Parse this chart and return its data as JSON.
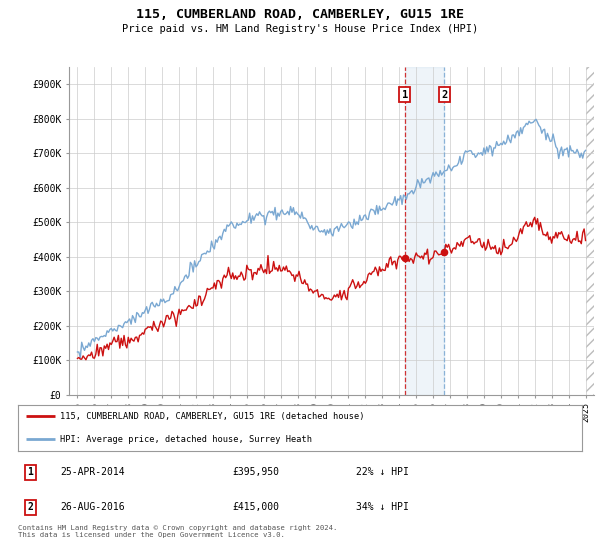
{
  "title": "115, CUMBERLAND ROAD, CAMBERLEY, GU15 1RE",
  "subtitle": "Price paid vs. HM Land Registry's House Price Index (HPI)",
  "ylim": [
    0,
    950000
  ],
  "yticks": [
    0,
    100000,
    200000,
    300000,
    400000,
    500000,
    600000,
    700000,
    800000,
    900000
  ],
  "hpi_color": "#7aa8d2",
  "price_color": "#cc1111",
  "annotation_color_red": "#cc1111",
  "annotation_color_blue": "#7aa8d2",
  "background_color": "#ffffff",
  "grid_color": "#cccccc",
  "transaction1": {
    "date": "25-APR-2014",
    "price": 395950,
    "label": "1",
    "x_year": 2014.32
  },
  "transaction2": {
    "date": "26-AUG-2016",
    "price": 415000,
    "label": "2",
    "x_year": 2016.66
  },
  "legend1": "115, CUMBERLAND ROAD, CAMBERLEY, GU15 1RE (detached house)",
  "legend2": "HPI: Average price, detached house, Surrey Heath",
  "footnote": "Contains HM Land Registry data © Crown copyright and database right 2024.\nThis data is licensed under the Open Government Licence v3.0.",
  "table_row1": [
    "1",
    "25-APR-2014",
    "£395,950",
    "22% ↓ HPI"
  ],
  "table_row2": [
    "2",
    "26-AUG-2016",
    "£415,000",
    "34% ↓ HPI"
  ],
  "xlim_start": 1994.5,
  "xlim_end": 2025.5,
  "xtick_years": [
    1995,
    1996,
    1997,
    1998,
    1999,
    2000,
    2001,
    2002,
    2003,
    2004,
    2005,
    2006,
    2007,
    2008,
    2009,
    2010,
    2011,
    2012,
    2013,
    2014,
    2015,
    2016,
    2017,
    2018,
    2019,
    2020,
    2021,
    2022,
    2023,
    2024,
    2025
  ]
}
